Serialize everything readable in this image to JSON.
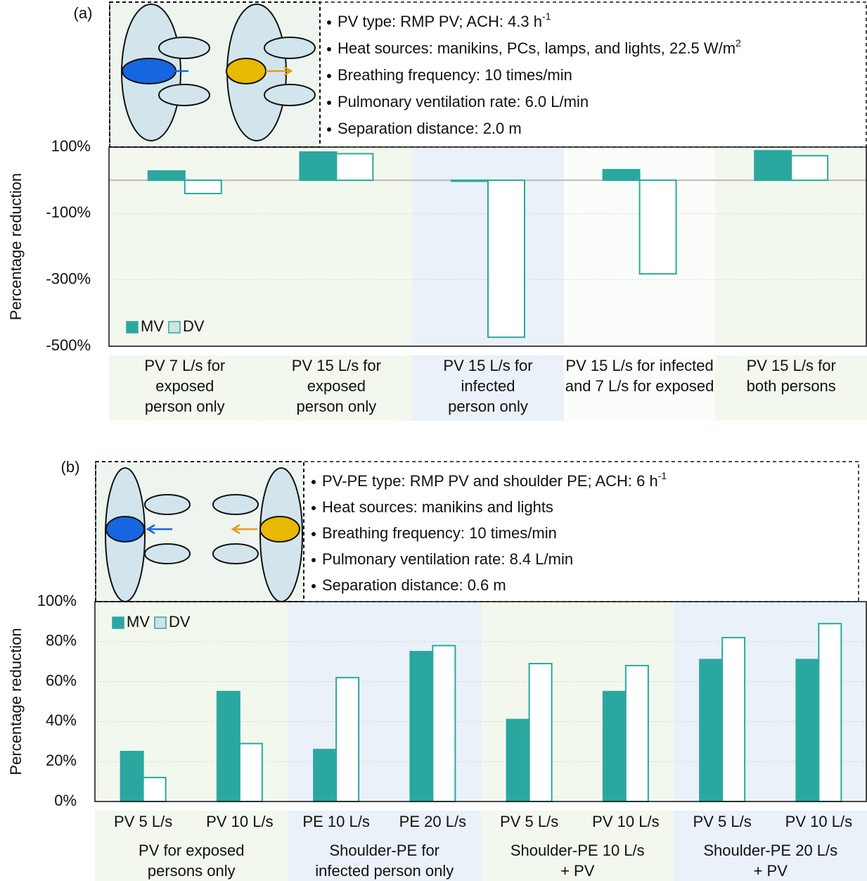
{
  "chart_data": [
    {
      "type": "bar",
      "panel_label": "(a)",
      "ylabel": "Percentage reduction",
      "info": [
        {
          "text": "PV type: RMP PV;   ACH: 4.3 h",
          "sup": "-1"
        },
        {
          "text": "Heat sources: manikins, PCs, lamps, and lights, 22.5 W/m",
          "sup": "2"
        },
        {
          "text": "Breathing frequency: 10 times/min"
        },
        {
          "text": "Pulmonary ventilation rate: 6.0 L/min"
        },
        {
          "text": "Separation distance: 2.0 m"
        }
      ],
      "categories": [
        [
          "PV 7 L/s for",
          "exposed",
          "person only"
        ],
        [
          "PV 15 L/s for",
          "exposed",
          "person only"
        ],
        [
          "PV 15 L/s for",
          "infected",
          "person only"
        ],
        [
          "PV 15 L/s for infected",
          "and 7 L/s for exposed"
        ],
        [
          "PV 15 L/s for",
          "both persons"
        ]
      ],
      "series": [
        {
          "name": "MV",
          "color": "#2aa8a0",
          "values": [
            28,
            85,
            -3,
            32,
            89
          ]
        },
        {
          "name": "DV",
          "color": "#2aa8a0",
          "values": [
            -40,
            80,
            -473,
            -282,
            74
          ]
        }
      ],
      "ylim": [
        -500,
        100
      ],
      "yticks": [
        {
          "value": -500,
          "label": "-500%"
        },
        {
          "value": -300,
          "label": "-300%"
        },
        {
          "value": -100,
          "label": "-100%"
        },
        {
          "value": 100,
          "label": "100%"
        }
      ],
      "grid": true
    },
    {
      "type": "bar",
      "panel_label": "(b)",
      "ylabel": "Percentage reduction",
      "info": [
        {
          "text": "PV-PE type: RMP PV and shoulder PE; ACH: 6 h",
          "sup": "-1"
        },
        {
          "text": "Heat sources: manikins and lights"
        },
        {
          "text": "Breathing frequency: 10 times/min"
        },
        {
          "text": "Pulmonary ventilation rate: 8.4 L/min"
        },
        {
          "text": "Separation distance: 0.6 m"
        }
      ],
      "categories": [
        [
          "PV 5 L/s"
        ],
        [
          "PV 10 L/s"
        ],
        [
          "PE 10 L/s"
        ],
        [
          "PE 20 L/s"
        ],
        [
          "PV 5 L/s"
        ],
        [
          "PV 10 L/s"
        ],
        [
          "PV 5 L/s"
        ],
        [
          "PV 10 L/s"
        ]
      ],
      "groups": [
        [
          "PV for exposed",
          "persons only"
        ],
        [
          "Shoulder-PE for",
          "infected person only"
        ],
        [
          "Shoulder-PE 10 L/s",
          "+ PV"
        ],
        [
          "Shoulder-PE 20 L/s",
          "+ PV"
        ]
      ],
      "series": [
        {
          "name": "MV",
          "color": "#2aa8a0",
          "values": [
            25,
            55,
            26,
            75,
            41,
            55,
            71,
            71
          ]
        },
        {
          "name": "DV",
          "color": "#2aa8a0",
          "values": [
            12,
            29,
            62,
            78,
            69,
            68,
            82,
            89
          ]
        }
      ],
      "ylim": [
        0,
        100
      ],
      "yticks": [
        {
          "value": 0,
          "label": "0%"
        },
        {
          "value": 20,
          "label": "20%"
        },
        {
          "value": 40,
          "label": "40%"
        },
        {
          "value": 60,
          "label": "60%"
        },
        {
          "value": 80,
          "label": "80%"
        },
        {
          "value": 100,
          "label": "100%"
        }
      ],
      "grid": true
    }
  ]
}
